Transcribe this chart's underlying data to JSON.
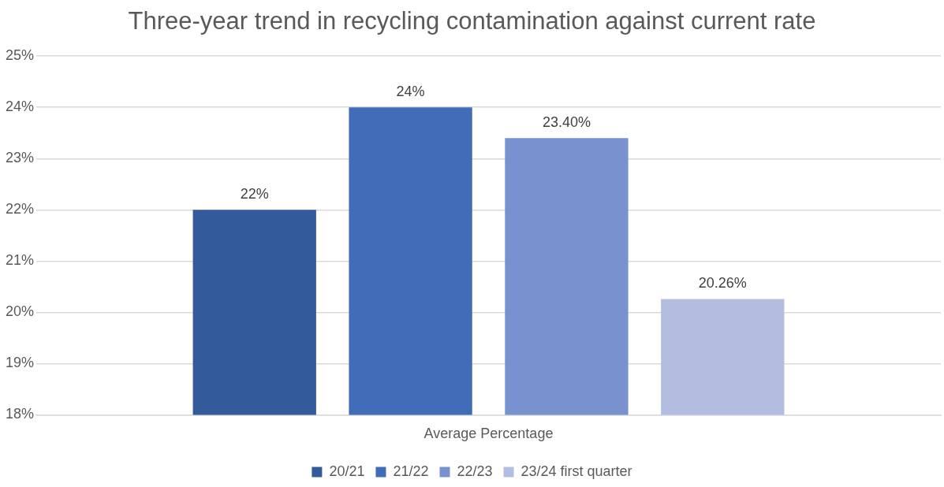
{
  "chart_data": {
    "type": "bar",
    "title": "Three-year trend in recycling contamination against current rate",
    "categories": [
      "Average Percentage"
    ],
    "series": [
      {
        "name": "20/21",
        "color": "#335a9a",
        "values": [
          22
        ],
        "value_labels": [
          "22%"
        ]
      },
      {
        "name": "21/22",
        "color": "#416cb8",
        "values": [
          24
        ],
        "value_labels": [
          "24%"
        ]
      },
      {
        "name": "22/23",
        "color": "#7891cf",
        "values": [
          23.4
        ],
        "value_labels": [
          "23.40%"
        ]
      },
      {
        "name": "23/24 first quarter",
        "color": "#b3bde0",
        "values": [
          20.26
        ],
        "value_labels": [
          "20.26%"
        ]
      }
    ],
    "ylim": [
      18,
      25
    ],
    "yticks": [
      {
        "value": 18,
        "label": "18%"
      },
      {
        "value": 19,
        "label": "19%"
      },
      {
        "value": 20,
        "label": "20%"
      },
      {
        "value": 21,
        "label": "21%"
      },
      {
        "value": 22,
        "label": "22%"
      },
      {
        "value": 23,
        "label": "23%"
      },
      {
        "value": 24,
        "label": "24%"
      },
      {
        "value": 25,
        "label": "25%"
      }
    ],
    "grid": "y",
    "legend": "bottom"
  }
}
